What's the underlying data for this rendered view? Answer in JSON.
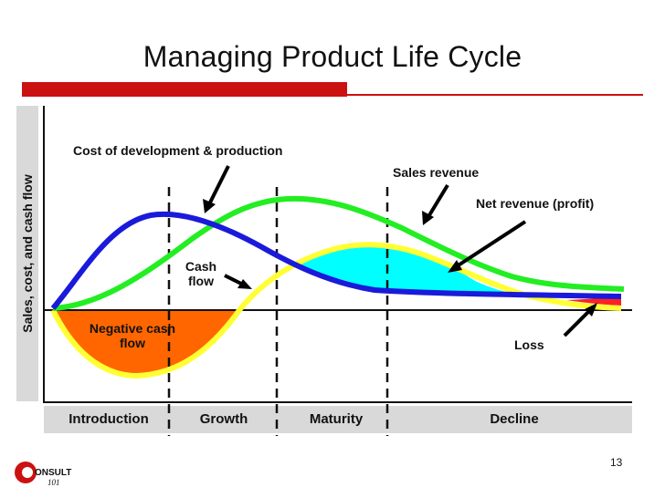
{
  "slide": {
    "title": "Managing Product Life Cycle",
    "page_number": "13"
  },
  "axis": {
    "ylabel": "Sales, cost, and cash flow"
  },
  "phases": [
    "Introduction",
    "Growth",
    "Maturity",
    "Decline"
  ],
  "annotations": {
    "cost": "Cost of development & production",
    "sales_revenue": "Sales revenue",
    "net_revenue": "Net revenue (profit)",
    "cash_flow_line1": "Cash",
    "cash_flow_line2": "flow",
    "negative_line1": "Negative cash",
    "negative_line2": "flow",
    "loss": "Loss"
  },
  "logo": {
    "text": "ONSULT",
    "subtext": "101"
  },
  "colors": {
    "accent_red": "#cc1111",
    "sales_green": "#22ee22",
    "cost_blue": "#1a1adb",
    "cashflow_yellow": "#ffff33",
    "negative_orange": "#ff6600",
    "profit_cyan": "#00ffff",
    "loss_red": "#ff2222"
  }
}
